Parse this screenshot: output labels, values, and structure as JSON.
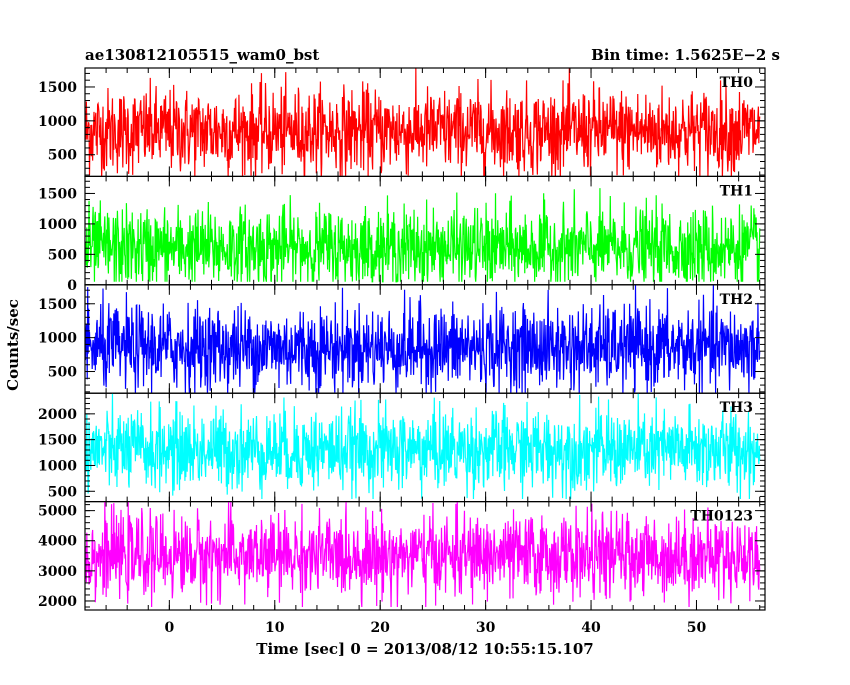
{
  "chart_data": {
    "type": "line",
    "title_left": "ae130812105515_wam0_bst",
    "title_right": "Bin time: 1.5625E−2 s",
    "xlabel": "Time [sec] 0 = 2013/08/12 10:55:15.107",
    "ylabel": "Counts/sec",
    "xlim": [
      -8,
      56.5
    ],
    "x_ticks": [
      0,
      10,
      20,
      30,
      40,
      50
    ],
    "x_tick_labels": [
      "0",
      "10",
      "20",
      "30",
      "40",
      "50"
    ],
    "x_data_range": [
      -8,
      56
    ],
    "bin_time": 0.015625,
    "grid": false,
    "panels": [
      {
        "name": "TH0",
        "color": "#ff0000",
        "ylim": [
          180,
          1780
        ],
        "y_ticks": [
          500,
          1000,
          1500
        ],
        "y_tick_labels": [
          "500",
          "1000",
          "1500"
        ],
        "approx_mean": 850,
        "approx_spread": [
          150,
          1780
        ]
      },
      {
        "name": "TH1",
        "color": "#00ff00",
        "ylim": [
          0,
          1780
        ],
        "y_ticks": [
          0,
          500,
          1000,
          1500
        ],
        "y_tick_labels": [
          "0",
          "500",
          "1000",
          "1500"
        ],
        "approx_mean": 600,
        "approx_spread": [
          50,
          1780
        ]
      },
      {
        "name": "TH2",
        "color": "#0000ff",
        "ylim": [
          180,
          1780
        ],
        "y_ticks": [
          500,
          1000,
          1500
        ],
        "y_tick_labels": [
          "500",
          "1000",
          "1500"
        ],
        "approx_mean": 850,
        "approx_spread": [
          150,
          1780
        ]
      },
      {
        "name": "TH3",
        "color": "#00ffff",
        "ylim": [
          300,
          2400
        ],
        "y_ticks": [
          500,
          1000,
          1500,
          2000
        ],
        "y_tick_labels": [
          "500",
          "1000",
          "1500",
          "2000"
        ],
        "approx_mean": 1300,
        "approx_spread": [
          350,
          2400
        ]
      },
      {
        "name": "TH0123",
        "color": "#ff00ff",
        "ylim": [
          1700,
          5300
        ],
        "y_ticks": [
          2000,
          3000,
          4000,
          5000
        ],
        "y_tick_labels": [
          "2000",
          "3000",
          "4000",
          "5000"
        ],
        "approx_mean": 3500,
        "approx_spread": [
          1800,
          5300
        ]
      }
    ]
  }
}
